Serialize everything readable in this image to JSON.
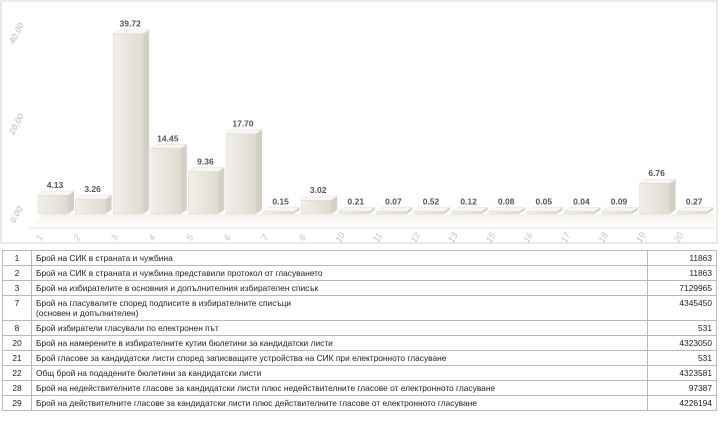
{
  "chart_data": {
    "type": "bar",
    "categories": [
      "1",
      "2",
      "3",
      "4",
      "5",
      "6",
      "7",
      "8",
      "10",
      "11",
      "12",
      "13",
      "15",
      "16",
      "17",
      "18",
      "19",
      "20"
    ],
    "values": [
      4.13,
      3.26,
      39.72,
      14.45,
      9.36,
      17.7,
      0.15,
      3.02,
      0.21,
      0.07,
      0.52,
      0.12,
      0.08,
      0.05,
      0.04,
      0.09,
      6.76,
      0.27
    ],
    "value_labels": [
      "4.13",
      "3.26",
      "39.72",
      "14.45",
      "9.36",
      "17.70",
      "0.15",
      "3.02",
      "0.21",
      "0.07",
      "0.52",
      "0.12",
      "0.08",
      "0.05",
      "0.04",
      "0.09",
      "6.76",
      "0.27"
    ],
    "ylim": [
      0,
      45
    ],
    "yticks": [
      "0.00",
      "20.00",
      "40.00"
    ],
    "ytick_values": [
      0,
      20,
      40
    ],
    "grid": false,
    "bar_color": "#ece9e1"
  },
  "table": {
    "rows": [
      {
        "num": "1",
        "label": "Брой на СИК в страната и чужбина",
        "value": "11863"
      },
      {
        "num": "2",
        "label": "Брой на СИК в страната и чужбина представили протокол от гласуването",
        "value": "11863"
      },
      {
        "num": "3",
        "label": "Брой на избирателите в основния и допълнителния избирателен списък",
        "value": "7129965"
      },
      {
        "num": "7",
        "label": "Брой на гласувалите според подписите в избирателните списъци\n(основен и допълнителен)",
        "value": "4345450"
      },
      {
        "num": "8",
        "label": "Брой избиратели гласували по електронен път",
        "value": "531"
      },
      {
        "num": "20",
        "label": "Брой на намерените в избирателните кутии бюлетини за кандидатски листи",
        "value": "4323050"
      },
      {
        "num": "21",
        "label": "Брой гласове за кандидатски листи според записващите устройства на СИК при електронното гласуване",
        "value": "531"
      },
      {
        "num": "22",
        "label": "Общ брой на подадените бюлетини за кандидатски листи",
        "value": "4323581"
      },
      {
        "num": "28",
        "label": "Брой на недействителните гласове за кандидатски листи плюс недействителните гласове от електронното гласуване",
        "value": "97387"
      },
      {
        "num": "29",
        "label": "Брой на действителните гласове за кандидатски листи плюс действителните гласове от електронното гласуване",
        "value": "4226194"
      }
    ]
  }
}
